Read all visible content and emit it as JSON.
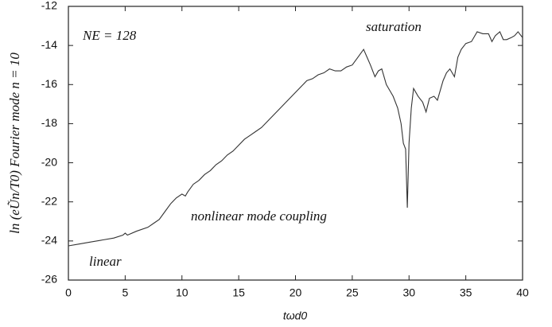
{
  "chart_data": {
    "type": "line",
    "xlabel": "tωd0",
    "ylabel": "ln (eŨn/T0)  Fourier mode  n = 10",
    "annotations": [
      "NE = 128",
      "saturation",
      "nonlinear mode coupling",
      "linear"
    ],
    "xlim": [
      0,
      40
    ],
    "ylim": [
      -26,
      -12
    ],
    "xticks": [
      0,
      5,
      10,
      15,
      20,
      25,
      30,
      35,
      40
    ],
    "yticks": [
      -26,
      -24,
      -22,
      -20,
      -18,
      -16,
      -14,
      -12
    ],
    "grid": false,
    "series": [
      {
        "color": "#333333",
        "x": [
          0,
          1,
          2,
          3,
          4,
          4.8,
          5,
          5.2,
          6,
          7,
          7.5,
          8,
          8.5,
          9,
          9.5,
          10,
          10.3,
          10.5,
          11,
          11.5,
          12,
          12.5,
          13,
          13.5,
          14,
          14.5,
          15,
          15.5,
          16,
          16.5,
          17,
          17.5,
          18,
          18.5,
          19,
          19.5,
          20,
          20.5,
          21,
          21.5,
          22,
          22.5,
          23,
          23.5,
          24,
          24.5,
          25,
          25.5,
          26,
          26.3,
          26.6,
          27,
          27.3,
          27.6,
          28,
          28.3,
          28.6,
          29,
          29.3,
          29.5,
          29.7,
          29.85,
          30,
          30.2,
          30.4,
          30.8,
          31.2,
          31.5,
          31.8,
          32.2,
          32.5,
          33,
          33.3,
          33.6,
          34,
          34.3,
          34.6,
          35,
          35.5,
          36,
          36.5,
          37,
          37.3,
          37.6,
          38,
          38.3,
          38.6,
          39,
          39.3,
          39.6,
          40
        ],
        "values": [
          -24.25,
          -24.15,
          -24.05,
          -23.95,
          -23.85,
          -23.7,
          -23.6,
          -23.7,
          -23.5,
          -23.3,
          -23.1,
          -22.9,
          -22.5,
          -22.1,
          -21.8,
          -21.6,
          -21.7,
          -21.5,
          -21.1,
          -20.9,
          -20.6,
          -20.4,
          -20.1,
          -19.9,
          -19.6,
          -19.4,
          -19.1,
          -18.8,
          -18.6,
          -18.4,
          -18.2,
          -17.9,
          -17.6,
          -17.3,
          -17.0,
          -16.7,
          -16.4,
          -16.1,
          -15.8,
          -15.7,
          -15.5,
          -15.4,
          -15.2,
          -15.3,
          -15.3,
          -15.1,
          -15.0,
          -14.6,
          -14.2,
          -14.6,
          -15.0,
          -15.6,
          -15.3,
          -15.2,
          -16.0,
          -16.3,
          -16.6,
          -17.2,
          -18.0,
          -19.0,
          -19.3,
          -22.3,
          -19.0,
          -17.2,
          -16.2,
          -16.6,
          -16.9,
          -17.4,
          -16.7,
          -16.6,
          -16.8,
          -15.8,
          -15.4,
          -15.2,
          -15.6,
          -14.6,
          -14.2,
          -13.9,
          -13.8,
          -13.3,
          -13.4,
          -13.4,
          -13.8,
          -13.5,
          -13.3,
          -13.7,
          -13.7,
          -13.6,
          -13.5,
          -13.3,
          -13.6
        ]
      }
    ]
  }
}
